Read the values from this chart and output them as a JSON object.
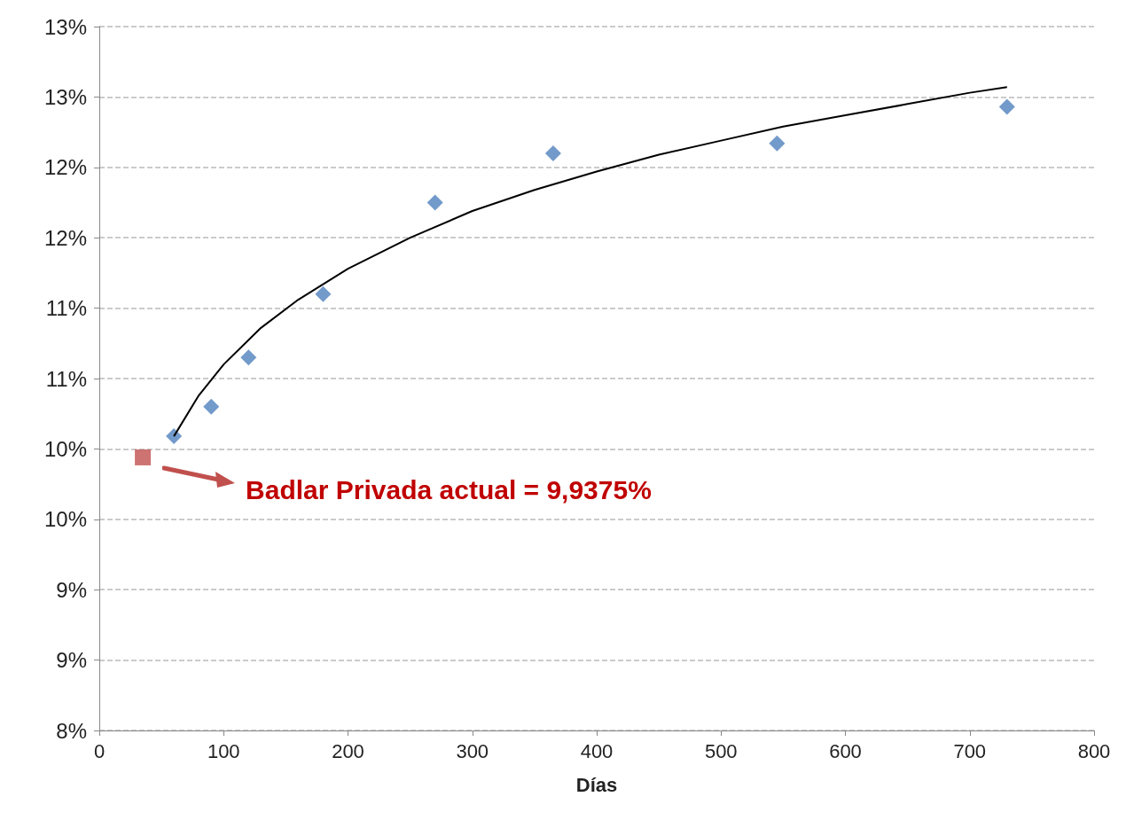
{
  "chart_data": {
    "type": "scatter",
    "xlabel": "Días",
    "series": [
      {
        "type": "scatter",
        "color": "#4f81bd",
        "marker": "diamond",
        "x": [
          60,
          90,
          120,
          180,
          270,
          365,
          545,
          730
        ],
        "values": [
          10.09,
          10.3,
          10.65,
          11.1,
          11.75,
          12.1,
          12.17,
          12.43
        ]
      },
      {
        "type": "line",
        "color": "#000000",
        "marker": "none",
        "line_style": "solid",
        "x": [
          60,
          80,
          100,
          130,
          160,
          200,
          250,
          300,
          350,
          400,
          450,
          500,
          550,
          600,
          650,
          700,
          730
        ],
        "values": [
          10.09,
          10.38,
          10.6,
          10.86,
          11.06,
          11.28,
          11.5,
          11.69,
          11.84,
          11.97,
          12.09,
          12.19,
          12.29,
          12.37,
          12.45,
          12.53,
          12.57
        ]
      },
      {
        "type": "scatter",
        "color": "#c0504d",
        "marker": "square",
        "x": [
          35
        ],
        "values": [
          9.94
        ]
      }
    ],
    "annotations": [
      "Badlar Privada actual = 9,9375%"
    ],
    "xlim": [
      0,
      800
    ],
    "xticks": [
      0,
      100,
      200,
      300,
      400,
      500,
      600,
      700,
      800
    ],
    "ylim": [
      8,
      13
    ],
    "yticks": [
      {
        "value": 8,
        "label": "8%"
      },
      {
        "value": 8.5,
        "label": "9%"
      },
      {
        "value": 9,
        "label": "9%"
      },
      {
        "value": 9.5,
        "label": "10%"
      },
      {
        "value": 10,
        "label": "10%"
      },
      {
        "value": 10.5,
        "label": "11%"
      },
      {
        "value": 11,
        "label": "11%"
      },
      {
        "value": 11.5,
        "label": "12%"
      },
      {
        "value": 12,
        "label": "12%"
      },
      {
        "value": 12.5,
        "label": "13%"
      },
      {
        "value": 13,
        "label": "13%"
      }
    ],
    "grid": "y"
  }
}
